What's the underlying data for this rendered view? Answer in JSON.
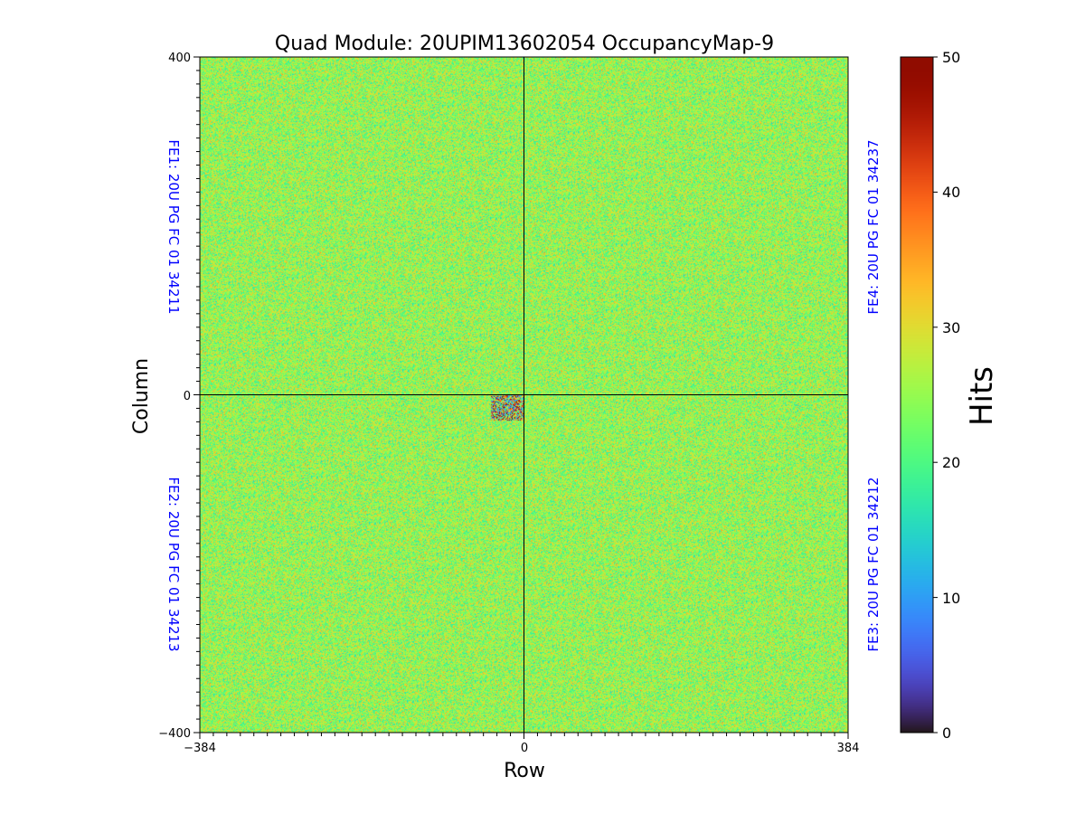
{
  "chart_data": {
    "type": "heatmap",
    "title": "Quad Module: 20UPIM13602054 OccupancyMap-9",
    "xlabel": "Row",
    "ylabel": "Column",
    "xlim": [
      -384,
      384
    ],
    "ylim": [
      -400,
      400
    ],
    "x_ticks": [
      {
        "value": -384,
        "label": "−384"
      },
      {
        "value": 0,
        "label": "0"
      },
      {
        "value": 384,
        "label": "384"
      }
    ],
    "y_ticks": [
      {
        "value": 400,
        "label": "400"
      },
      {
        "value": 0,
        "label": "0"
      },
      {
        "value": -400,
        "label": "−400"
      }
    ],
    "grid": false,
    "colormap": "turbo",
    "colorbar": {
      "label": "Hits",
      "min": 0,
      "max": 50,
      "ticks": [
        {
          "value": 0,
          "label": "0"
        },
        {
          "value": 10,
          "label": "10"
        },
        {
          "value": 20,
          "label": "20"
        },
        {
          "value": 30,
          "label": "30"
        },
        {
          "value": 40,
          "label": "40"
        },
        {
          "value": 50,
          "label": "50"
        }
      ]
    },
    "typical_hits_range": [
      18,
      32
    ],
    "hot_spot": {
      "x_range": [
        -40,
        0
      ],
      "y_range": [
        -30,
        0
      ],
      "hits_range": [
        0,
        50
      ]
    },
    "fe_labels": [
      {
        "id": "fe1",
        "text": "FE1: 20U PG FC 01 34211",
        "quadrant": "top-left",
        "side": "left"
      },
      {
        "id": "fe2",
        "text": "FE2: 20U PG FC 01 34213",
        "quadrant": "bottom-left",
        "side": "left"
      },
      {
        "id": "fe3",
        "text": "FE3: 20U PG FC 01 34212",
        "quadrant": "bottom-right",
        "side": "right"
      },
      {
        "id": "fe4",
        "text": "FE4: 20U PG FC 01 34237",
        "quadrant": "top-right",
        "side": "right"
      }
    ],
    "colors": {
      "fe_label": "#0000ff",
      "axis": "#000000",
      "quadrant_divider": "#000000"
    }
  }
}
